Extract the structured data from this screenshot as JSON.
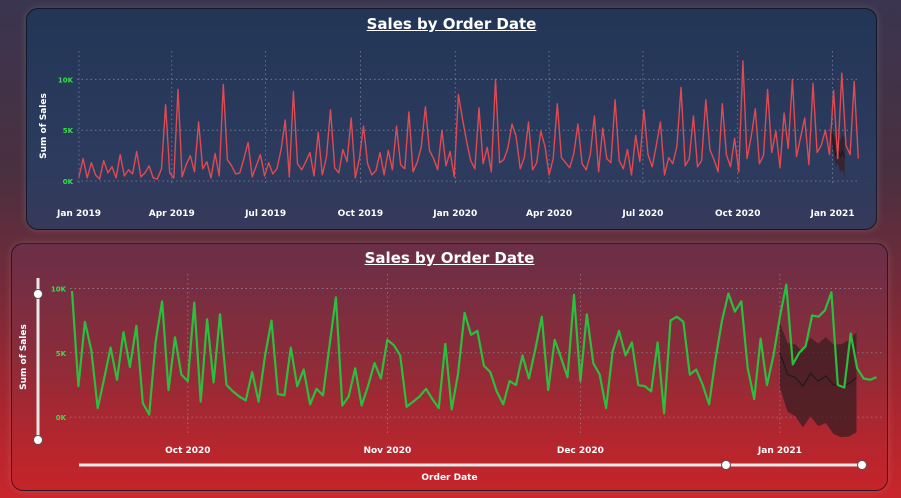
{
  "colors": {
    "top_line": "#e04a52",
    "bottom_line": "#2bbf3f",
    "forecast_line": "#1b1b1b",
    "forecast_band": "#3a1e22",
    "tick_green": "#35e04a",
    "grid": "#aab4c8"
  },
  "top_chart": {
    "title": "Sales by Order Date",
    "ylabel": "Sum of Sales"
  },
  "bottom_chart": {
    "title": "Sales by Order Date",
    "ylabel": "Sum of Sales",
    "xlabel": "Order Date",
    "zoom_slider_vertical": {
      "icon": "slider-handle"
    },
    "zoom_slider_horizontal": {
      "icon": "slider-handle"
    }
  },
  "chart_data": [
    {
      "type": "line",
      "title": "Sales by Order Date",
      "xlabel": "",
      "ylabel": "Sum of Sales",
      "ylim": [
        0,
        12000
      ],
      "yticks": [
        {
          "v": 0,
          "label": "0K"
        },
        {
          "v": 5000,
          "label": "5K"
        },
        {
          "v": 10000,
          "label": "10K"
        }
      ],
      "x_range": [
        "2019-01-01",
        "2021-01-15"
      ],
      "xticks": [
        {
          "date": "2019-01-01",
          "label": "Jan 2019"
        },
        {
          "date": "2019-04-01",
          "label": "Apr 2019"
        },
        {
          "date": "2019-07-01",
          "label": "Jul 2019"
        },
        {
          "date": "2019-10-01",
          "label": "Oct 2019"
        },
        {
          "date": "2020-01-01",
          "label": "Jan 2020"
        },
        {
          "date": "2020-04-01",
          "label": "Apr 2020"
        },
        {
          "date": "2020-07-01",
          "label": "Jul 2020"
        },
        {
          "date": "2020-10-01",
          "label": "Oct 2020"
        },
        {
          "date": "2021-01-01",
          "label": "Jan 2021"
        }
      ],
      "grid": true,
      "series": [
        {
          "x_start": "2019-01-01",
          "x_step_days": 4,
          "values": [
            400,
            2200,
            300,
            1800,
            600,
            200,
            2000,
            800,
            1400,
            300,
            2600,
            500,
            1100,
            700,
            2900,
            400,
            800,
            1500,
            300,
            200,
            1200,
            7500,
            800,
            300,
            9000,
            400,
            1600,
            2500,
            900,
            5800,
            1200,
            1900,
            300,
            2700,
            500,
            9500,
            2100,
            1500,
            700,
            800,
            2200,
            3800,
            400,
            1500,
            2600,
            500,
            1800,
            700,
            1200,
            3100,
            6000,
            400,
            8800,
            1700,
            1100,
            1900,
            2800,
            500,
            4800,
            600,
            2300,
            7000,
            1300,
            800,
            3100,
            1900,
            6200,
            300,
            2200,
            5400,
            1700,
            600,
            1000,
            2800,
            600,
            3000,
            1100,
            5400,
            1600,
            1200,
            6800,
            900,
            1800,
            3300,
            7300,
            3000,
            2200,
            1100,
            5000,
            1500,
            2900,
            400,
            8500,
            6100,
            3900,
            2000,
            1200,
            7200,
            1700,
            3300,
            900,
            10000,
            1800,
            2100,
            3200,
            5600,
            4400,
            1200,
            2300,
            5800,
            1100,
            1800,
            4900,
            3400,
            600,
            2200,
            7600,
            2300,
            1800,
            1300,
            2700,
            5600,
            1700,
            1100,
            2600,
            6400,
            900,
            5200,
            2200,
            1800,
            8000,
            2000,
            1200,
            3100,
            600,
            4500,
            1900,
            7000,
            2600,
            1400,
            3500,
            5800,
            600,
            2300,
            1700,
            3400,
            9200,
            1500,
            2200,
            6400,
            1400,
            2000,
            8000,
            3100,
            2100,
            900,
            7600,
            2600,
            1400,
            4200,
            900,
            11800,
            2200,
            4300,
            7100,
            1700,
            2500,
            9000,
            2800,
            4900,
            1300,
            6700,
            3200,
            10000,
            2400,
            4300,
            6200,
            1600,
            9600,
            2800,
            3500,
            5000,
            2600,
            8900,
            2200,
            10600,
            3500,
            2600,
            9800,
            2200
          ]
        }
      ],
      "forecast": {
        "x_start": "2020-12-31",
        "values": [
          4800,
          3600,
          2600,
          3100,
          2400,
          2900,
          2300
        ]
      }
    },
    {
      "type": "line",
      "title": "Sales by Order Date",
      "xlabel": "Order Date",
      "ylabel": "Sum of Sales",
      "ylim": [
        -1000,
        10500
      ],
      "yticks": [
        {
          "v": 0,
          "label": "0K"
        },
        {
          "v": 5000,
          "label": "5K"
        },
        {
          "v": 10000,
          "label": "10K"
        }
      ],
      "x_range": [
        "2020-09-13",
        "2021-01-15"
      ],
      "xticks": [
        {
          "date": "2020-10-01",
          "label": "Oct 2020"
        },
        {
          "date": "2020-11-01",
          "label": "Nov 2020"
        },
        {
          "date": "2020-12-01",
          "label": "Dec 2020"
        },
        {
          "date": "2021-01-01",
          "label": "Jan 2021"
        }
      ],
      "grid": true,
      "series": [
        {
          "x_start": "2020-09-13",
          "x_step_days": 1,
          "values": [
            9800,
            2400,
            7400,
            5200,
            700,
            3000,
            5400,
            2900,
            6600,
            3900,
            7100,
            1100,
            200,
            5900,
            9000,
            2100,
            6200,
            3300,
            2800,
            8900,
            1200,
            7600,
            2700,
            8000,
            2500,
            2000,
            1600,
            1300,
            3500,
            1200,
            4800,
            7500,
            1800,
            1700,
            5400,
            2400,
            3700,
            1000,
            2200,
            1700,
            5500,
            9300,
            900,
            1600,
            3800,
            900,
            2400,
            4200,
            3000,
            6000,
            5600,
            4800,
            800,
            1200,
            1600,
            2200,
            1400,
            700,
            5700,
            600,
            3400,
            8100,
            6400,
            6700,
            4000,
            3500,
            2000,
            1000,
            2800,
            2500,
            4800,
            3000,
            5300,
            7800,
            2100,
            6000,
            4600,
            3100,
            9500,
            2800,
            8000,
            4200,
            3300,
            700,
            5100,
            6700,
            4800,
            5800,
            2500,
            2400,
            2000,
            5800,
            300,
            7500,
            7800,
            7400,
            3300,
            3700,
            2500,
            1000,
            4500,
            7500,
            9600,
            8200,
            9000,
            3800,
            1400,
            6100,
            2500,
            4800,
            7800,
            10300,
            4100,
            5000,
            5500,
            7900,
            7800,
            8300,
            9700,
            2500,
            2300,
            6500,
            3800,
            3000,
            2900,
            3100
          ]
        }
      ],
      "forecast": {
        "x_start": "2021-01-01",
        "values": [
          5000,
          3300,
          3100,
          2400,
          3400,
          2800,
          3200,
          2500,
          2400,
          2600,
          3100
        ]
      }
    }
  ]
}
